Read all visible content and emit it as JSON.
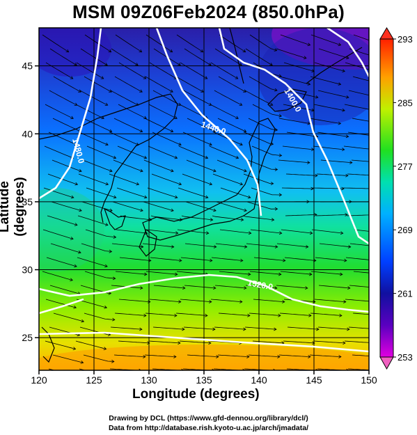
{
  "title": "MSM 09Z06Feb2024 (850.0hPa)",
  "xlabel": "Longitude (degrees)",
  "ylabel": "Latitude  (degrees)",
  "x_ticks": [
    "120",
    "125",
    "130",
    "135",
    "140",
    "145",
    "150"
  ],
  "y_ticks": [
    "25",
    "30",
    "35",
    "40",
    "45"
  ],
  "colorbar": {
    "labels": [
      "293",
      "285",
      "277",
      "269",
      "261",
      "253"
    ],
    "range": [
      253,
      293
    ],
    "colors": [
      "#e000e0",
      "#2020c0",
      "#0060ff",
      "#00d0d0",
      "#20e020",
      "#c0f000",
      "#ffa000",
      "#ff3000"
    ]
  },
  "contour_labels": [
    "1400.0",
    "1440.0",
    "1480.0",
    "1520.0"
  ],
  "footer": {
    "line1": "Drawing by DCL (https://www.gfd-dennou.org/library/dcl/)",
    "line2": "Data from http://database.rish.kyoto-u.ac.jp/arch/jmadata/"
  }
}
